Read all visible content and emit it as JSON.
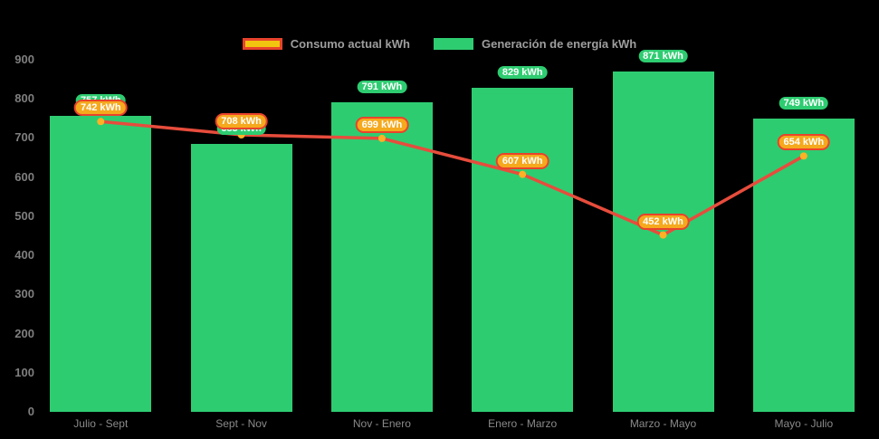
{
  "chart_data": {
    "type": "mixed-bar-line",
    "title": "",
    "categories": [
      "Julio - Sept",
      "Sept - Nov",
      "Nov - Enero",
      "Enero - Marzo",
      "Marzo - Mayo",
      "Mayo - Julio"
    ],
    "series": [
      {
        "name": "Consumo actual kWh",
        "type": "line",
        "color": "#e74c3c",
        "point_color": "#ffb125",
        "values": [
          742,
          708,
          699,
          607,
          452,
          654
        ],
        "labels": [
          "742 kWh",
          "708 kWh",
          "699 kWh",
          "607 kWh",
          "452 kWh",
          "654 kWh"
        ],
        "label_fill": "#f5a91d",
        "label_border": "#e8432c"
      },
      {
        "name": "Generación de energía kWh",
        "type": "bar",
        "color": "#2ecc71",
        "values": [
          757,
          685,
          791,
          829,
          871,
          749
        ],
        "labels": [
          "757 kWh",
          "685 kWh",
          "791 kWh",
          "829 kWh",
          "871 kWh",
          "749 kWh"
        ],
        "label_fill": "#2ecc71"
      }
    ],
    "ylim": [
      0,
      900
    ],
    "y_ticks": [
      "900",
      "800",
      "700",
      "600",
      "500",
      "400",
      "300",
      "200",
      "100",
      "0"
    ],
    "grid": false,
    "legend_position": "top",
    "background": "#000000",
    "axis_text_color": "#7f7f7f",
    "legend_text_color": "#9e9e9e",
    "legend_swatch_consumo_fill": "#f1c40f",
    "legend_swatch_consumo_border": "#e8432c",
    "legend_swatch_generacion_fill": "#2ecc71"
  }
}
